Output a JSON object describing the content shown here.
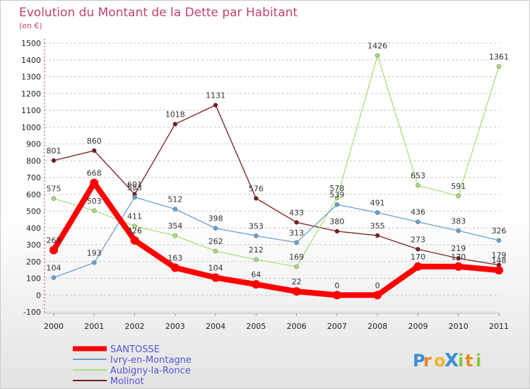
{
  "chart_data": {
    "type": "line",
    "title": "Evolution du Montant de la Dette par Habitant",
    "subtitle": "(en €)",
    "categories": [
      "2000",
      "2001",
      "2002",
      "2003",
      "2004",
      "2005",
      "2006",
      "2007",
      "2008",
      "2009",
      "2010",
      "2011"
    ],
    "ylim": [
      -100,
      1500
    ],
    "yticks": [
      -100,
      0,
      100,
      200,
      300,
      400,
      500,
      600,
      700,
      800,
      900,
      1000,
      1100,
      1200,
      1300,
      1400,
      1500
    ],
    "grid": "horizontal-dashed",
    "legend_position": "bottom-left",
    "series": [
      {
        "name": "Molinot",
        "color": "#7a1c1c",
        "values": [
          801,
          860,
          601,
          1018,
          1131,
          576,
          433,
          380,
          355,
          273,
          219,
          179
        ],
        "labels": [
          "801",
          "860",
          "601",
          "1018",
          "1131",
          "576",
          "433",
          "380",
          "355",
          "273",
          "219",
          "179"
        ]
      },
      {
        "name": "Aubigny-la-Ronce",
        "color": "#a6e07a",
        "values": [
          575,
          503,
          411,
          354,
          262,
          212,
          169,
          578,
          1426,
          653,
          591,
          1361
        ],
        "labels": [
          "575",
          "503",
          "411",
          "354",
          "262",
          "212",
          "169",
          "578",
          "1426",
          "653",
          "591",
          "1361"
        ]
      },
      {
        "name": "Ivry-en-Montagne",
        "color": "#6aa0d0",
        "values": [
          104,
          193,
          583,
          512,
          398,
          353,
          313,
          539,
          491,
          436,
          383,
          326
        ],
        "labels": [
          "104",
          "193",
          "583",
          "512",
          "398",
          "353",
          "313",
          "539",
          "491",
          "436",
          "383",
          "326"
        ]
      },
      {
        "name": "SANTOSSE",
        "color": "#ff0000",
        "values": [
          268,
          668,
          326,
          163,
          104,
          64,
          22,
          0,
          0,
          170,
          170,
          148
        ],
        "labels": [
          "268",
          "668",
          "326",
          "163",
          "104",
          "64",
          "22",
          "0",
          "0",
          "170",
          "170",
          "148"
        ]
      }
    ]
  },
  "legend": {
    "entries": [
      {
        "label": "SANTOSSE",
        "color": "#ff0000"
      },
      {
        "label": "Ivry-en-Montagne",
        "color": "#6aa0d0"
      },
      {
        "label": "Aubigny-la-Ronce",
        "color": "#a6e07a"
      },
      {
        "label": "Molinot",
        "color": "#7a1c1c"
      }
    ]
  },
  "logo": {
    "text": "ProXiti",
    "letters": [
      "P",
      "r",
      "o",
      "X",
      "i",
      "t",
      "i"
    ],
    "colors": [
      "#3a8fd6",
      "#e8891e",
      "#f0b52a",
      "#3a8fd6",
      "#8cc63f",
      "#e8891e",
      "#8cc63f"
    ]
  }
}
